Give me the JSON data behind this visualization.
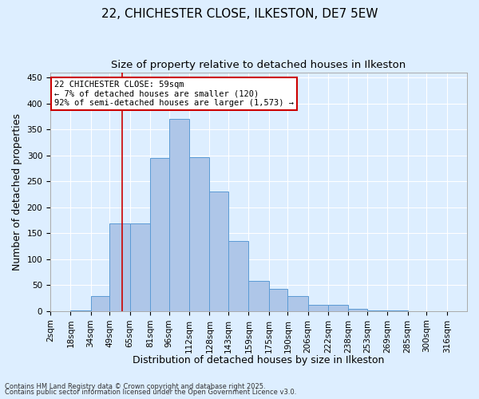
{
  "title": "22, CHICHESTER CLOSE, ILKESTON, DE7 5EW",
  "subtitle": "Size of property relative to detached houses in Ilkeston",
  "xlabel": "Distribution of detached houses by size in Ilkeston",
  "ylabel": "Number of detached properties",
  "footnote1": "Contains HM Land Registry data © Crown copyright and database right 2025.",
  "footnote2": "Contains public sector information licensed under the Open Government Licence v3.0.",
  "annotation_title": "22 CHICHESTER CLOSE: 59sqm",
  "annotation_line2": "← 7% of detached houses are smaller (120)",
  "annotation_line3": "92% of semi-detached houses are larger (1,573) →",
  "bar_color": "#aec6e8",
  "bar_edge_color": "#5b9bd5",
  "vline_color": "#cc0000",
  "vline_x": 59,
  "bin_edges": [
    2,
    18,
    34,
    49,
    65,
    81,
    96,
    112,
    128,
    143,
    159,
    175,
    190,
    206,
    222,
    238,
    253,
    269,
    285,
    300,
    316,
    332
  ],
  "bar_heights": [
    0,
    2,
    29,
    169,
    169,
    295,
    370,
    296,
    231,
    135,
    58,
    43,
    29,
    12,
    12,
    5,
    2,
    2,
    0,
    0,
    0
  ],
  "categories": [
    "2sqm",
    "18sqm",
    "34sqm",
    "49sqm",
    "65sqm",
    "81sqm",
    "96sqm",
    "112sqm",
    "128sqm",
    "143sqm",
    "159sqm",
    "175sqm",
    "190sqm",
    "206sqm",
    "222sqm",
    "238sqm",
    "253sqm",
    "269sqm",
    "285sqm",
    "300sqm",
    "316sqm"
  ],
  "ylim": [
    0,
    460
  ],
  "yticks": [
    0,
    50,
    100,
    150,
    200,
    250,
    300,
    350,
    400,
    450
  ],
  "background_color": "#ddeeff",
  "grid_color": "#ffffff",
  "title_fontsize": 11,
  "subtitle_fontsize": 9.5,
  "axis_fontsize": 9,
  "tick_fontsize": 7.5,
  "annotation_fontsize": 7.5
}
